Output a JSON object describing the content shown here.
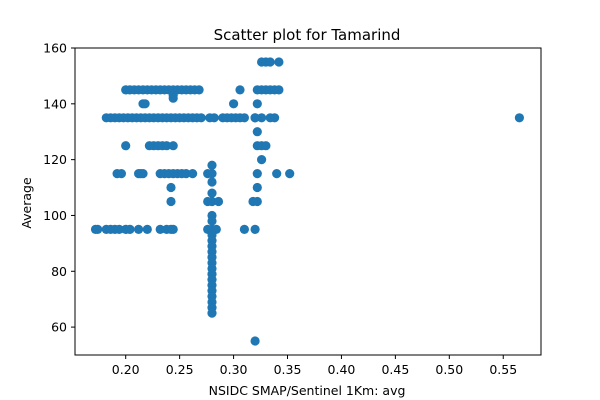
{
  "chart_data": {
    "type": "scatter",
    "title": "Scatter plot for Tamarind",
    "xlabel": "NSIDC SMAP/Sentinel 1Km: avg",
    "ylabel": "Average",
    "xlim": [
      0.153,
      0.585
    ],
    "ylim": [
      50,
      160
    ],
    "x_ticks": [
      0.2,
      0.25,
      0.3,
      0.35,
      0.4,
      0.45,
      0.5,
      0.55
    ],
    "x_tick_labels": [
      "0.20",
      "0.25",
      "0.30",
      "0.35",
      "0.40",
      "0.45",
      "0.50",
      "0.55"
    ],
    "y_ticks": [
      60,
      80,
      100,
      120,
      140,
      160
    ],
    "y_tick_labels": [
      "60",
      "80",
      "100",
      "120",
      "140",
      "160"
    ],
    "grid": false,
    "marker_color": "#1f77b4",
    "points": [
      [
        0.172,
        95
      ],
      [
        0.174,
        95
      ],
      [
        0.182,
        95
      ],
      [
        0.186,
        95
      ],
      [
        0.19,
        95
      ],
      [
        0.194,
        95
      ],
      [
        0.2,
        95
      ],
      [
        0.204,
        95
      ],
      [
        0.212,
        95
      ],
      [
        0.22,
        95
      ],
      [
        0.232,
        95
      ],
      [
        0.238,
        95
      ],
      [
        0.242,
        95
      ],
      [
        0.244,
        95
      ],
      [
        0.182,
        135
      ],
      [
        0.186,
        135
      ],
      [
        0.19,
        135
      ],
      [
        0.194,
        135
      ],
      [
        0.198,
        135
      ],
      [
        0.202,
        135
      ],
      [
        0.206,
        135
      ],
      [
        0.21,
        135
      ],
      [
        0.214,
        135
      ],
      [
        0.218,
        135
      ],
      [
        0.222,
        135
      ],
      [
        0.226,
        135
      ],
      [
        0.23,
        135
      ],
      [
        0.234,
        135
      ],
      [
        0.238,
        135
      ],
      [
        0.242,
        135
      ],
      [
        0.246,
        135
      ],
      [
        0.25,
        135
      ],
      [
        0.254,
        135
      ],
      [
        0.258,
        135
      ],
      [
        0.262,
        135
      ],
      [
        0.266,
        135
      ],
      [
        0.27,
        135
      ],
      [
        0.2,
        145
      ],
      [
        0.204,
        145
      ],
      [
        0.208,
        145
      ],
      [
        0.212,
        145
      ],
      [
        0.216,
        145
      ],
      [
        0.22,
        145
      ],
      [
        0.224,
        145
      ],
      [
        0.228,
        145
      ],
      [
        0.232,
        145
      ],
      [
        0.236,
        145
      ],
      [
        0.24,
        145
      ],
      [
        0.244,
        145
      ],
      [
        0.248,
        145
      ],
      [
        0.252,
        145
      ],
      [
        0.256,
        145
      ],
      [
        0.26,
        145
      ],
      [
        0.264,
        145
      ],
      [
        0.268,
        145
      ],
      [
        0.244,
        143
      ],
      [
        0.244,
        142
      ],
      [
        0.192,
        115
      ],
      [
        0.196,
        115
      ],
      [
        0.212,
        115
      ],
      [
        0.214,
        115
      ],
      [
        0.216,
        115
      ],
      [
        0.232,
        115
      ],
      [
        0.236,
        115
      ],
      [
        0.24,
        115
      ],
      [
        0.244,
        115
      ],
      [
        0.248,
        115
      ],
      [
        0.252,
        115
      ],
      [
        0.256,
        115
      ],
      [
        0.262,
        115
      ],
      [
        0.276,
        115
      ],
      [
        0.28,
        115
      ],
      [
        0.222,
        125
      ],
      [
        0.226,
        125
      ],
      [
        0.23,
        125
      ],
      [
        0.234,
        125
      ],
      [
        0.238,
        125
      ],
      [
        0.244,
        125
      ],
      [
        0.2,
        125
      ],
      [
        0.242,
        110
      ],
      [
        0.242,
        105
      ],
      [
        0.216,
        140
      ],
      [
        0.218,
        140
      ],
      [
        0.278,
        135
      ],
      [
        0.282,
        135
      ],
      [
        0.29,
        135
      ],
      [
        0.294,
        135
      ],
      [
        0.298,
        135
      ],
      [
        0.302,
        135
      ],
      [
        0.306,
        135
      ],
      [
        0.31,
        135
      ],
      [
        0.32,
        135
      ],
      [
        0.326,
        135
      ],
      [
        0.334,
        135
      ],
      [
        0.338,
        135
      ],
      [
        0.3,
        140
      ],
      [
        0.306,
        145
      ],
      [
        0.322,
        140
      ],
      [
        0.322,
        145
      ],
      [
        0.326,
        145
      ],
      [
        0.33,
        145
      ],
      [
        0.334,
        145
      ],
      [
        0.338,
        145
      ],
      [
        0.342,
        145
      ],
      [
        0.326,
        155
      ],
      [
        0.33,
        155
      ],
      [
        0.334,
        155
      ],
      [
        0.342,
        155
      ],
      [
        0.322,
        125
      ],
      [
        0.326,
        125
      ],
      [
        0.33,
        125
      ],
      [
        0.322,
        115
      ],
      [
        0.322,
        110
      ],
      [
        0.322,
        105
      ],
      [
        0.318,
        105
      ],
      [
        0.34,
        115
      ],
      [
        0.352,
        115
      ],
      [
        0.322,
        130
      ],
      [
        0.326,
        120
      ],
      [
        0.32,
        135
      ],
      [
        0.276,
        95
      ],
      [
        0.28,
        95
      ],
      [
        0.284,
        95
      ],
      [
        0.31,
        95
      ],
      [
        0.32,
        95
      ],
      [
        0.32,
        55
      ],
      [
        0.276,
        105
      ],
      [
        0.28,
        105
      ],
      [
        0.286,
        105
      ],
      [
        0.28,
        118
      ],
      [
        0.28,
        112
      ],
      [
        0.28,
        108
      ],
      [
        0.28,
        100
      ],
      [
        0.28,
        98
      ],
      [
        0.28,
        93
      ],
      [
        0.28,
        91
      ],
      [
        0.28,
        89
      ],
      [
        0.28,
        87
      ],
      [
        0.28,
        85
      ],
      [
        0.28,
        83
      ],
      [
        0.28,
        81
      ],
      [
        0.28,
        79
      ],
      [
        0.28,
        77
      ],
      [
        0.28,
        75
      ],
      [
        0.28,
        73
      ],
      [
        0.28,
        71
      ],
      [
        0.28,
        69
      ],
      [
        0.28,
        67
      ],
      [
        0.28,
        65
      ],
      [
        0.565,
        135
      ]
    ]
  }
}
